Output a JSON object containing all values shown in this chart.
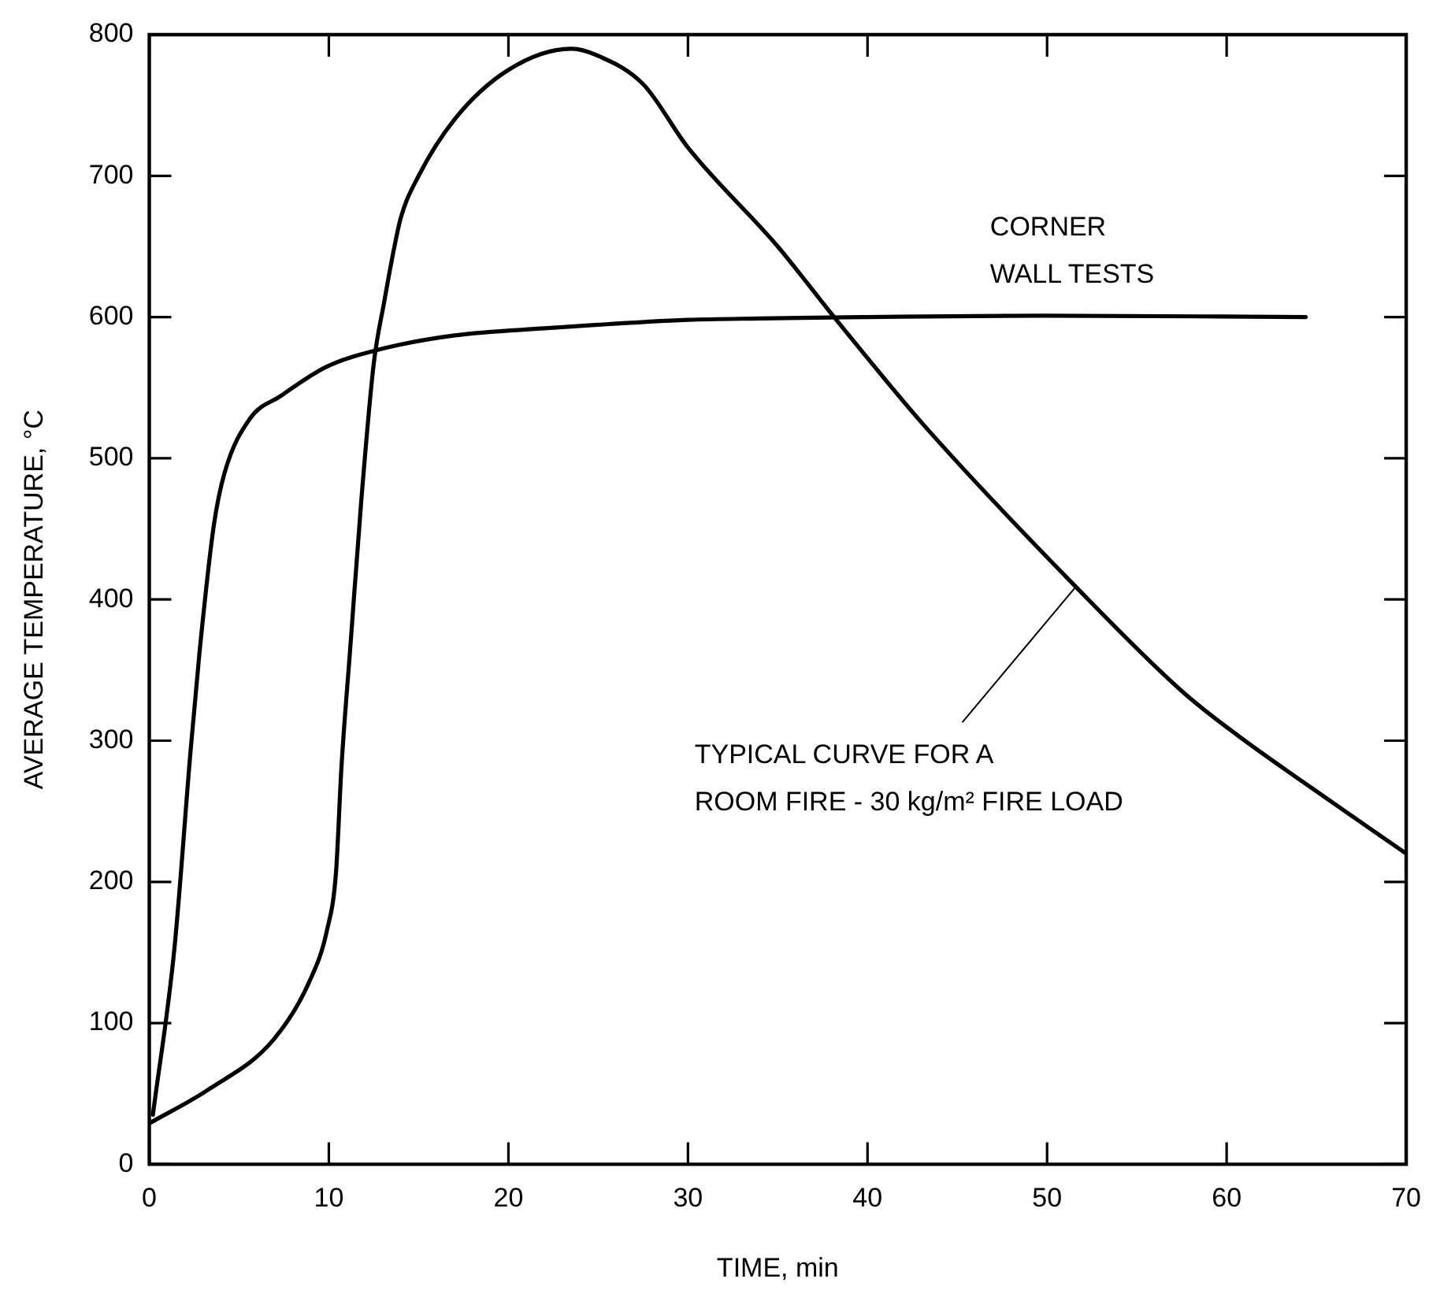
{
  "chart_data": {
    "type": "line",
    "xlabel": "TIME, min",
    "ylabel": "AVERAGE TEMPERATURE, °C",
    "xlim": [
      0,
      70
    ],
    "xticks": [
      0,
      10,
      20,
      30,
      40,
      50,
      60,
      70
    ],
    "ylim": [
      0,
      800
    ],
    "yticks": [
      0,
      100,
      200,
      300,
      400,
      500,
      600,
      700,
      800
    ],
    "grid": false,
    "legend": false,
    "marker": "none",
    "line_style": "solid",
    "series": [
      {
        "color": "#000000",
        "x": [
          0,
          3.3,
          6.9,
          8.9,
          9.9,
          10.4,
          10.7,
          11.2,
          11.8,
          12.5,
          13.1,
          13.5,
          14,
          15,
          17,
          20,
          23.5,
          25,
          27.5,
          30,
          35,
          38.2,
          43.1,
          51.6,
          57.6,
          60.8,
          64,
          70
        ],
        "values": [
          29,
          53,
          88,
          129,
          166,
          207,
          281,
          367,
          469,
          567,
          612,
          640,
          670,
          700,
          740,
          775,
          790,
          785,
          765,
          720,
          650,
          599,
          524,
          409,
          334,
          302,
          273,
          220
        ]
      },
      {
        "color": "#000000",
        "x": [
          0.2,
          1.4,
          2.3,
          2.8,
          3.6,
          4.2,
          5.6,
          7.3,
          9.9,
          12.8,
          17,
          22,
          30,
          34,
          40,
          50,
          64.4
        ],
        "values": [
          35,
          153,
          293,
          363,
          453,
          490,
          528,
          544,
          565,
          577,
          587,
          592,
          598,
          599,
          600,
          601,
          600
        ]
      }
    ],
    "annotations": [
      {
        "text": "CORNER\nWALL TESTS",
        "x": 47,
        "y": 600
      },
      {
        "text": "TYPICAL CURVE FOR A\nROOM FIRE - 30 kg/m² FIRE LOAD",
        "x": 51.6,
        "y": 409
      }
    ]
  }
}
